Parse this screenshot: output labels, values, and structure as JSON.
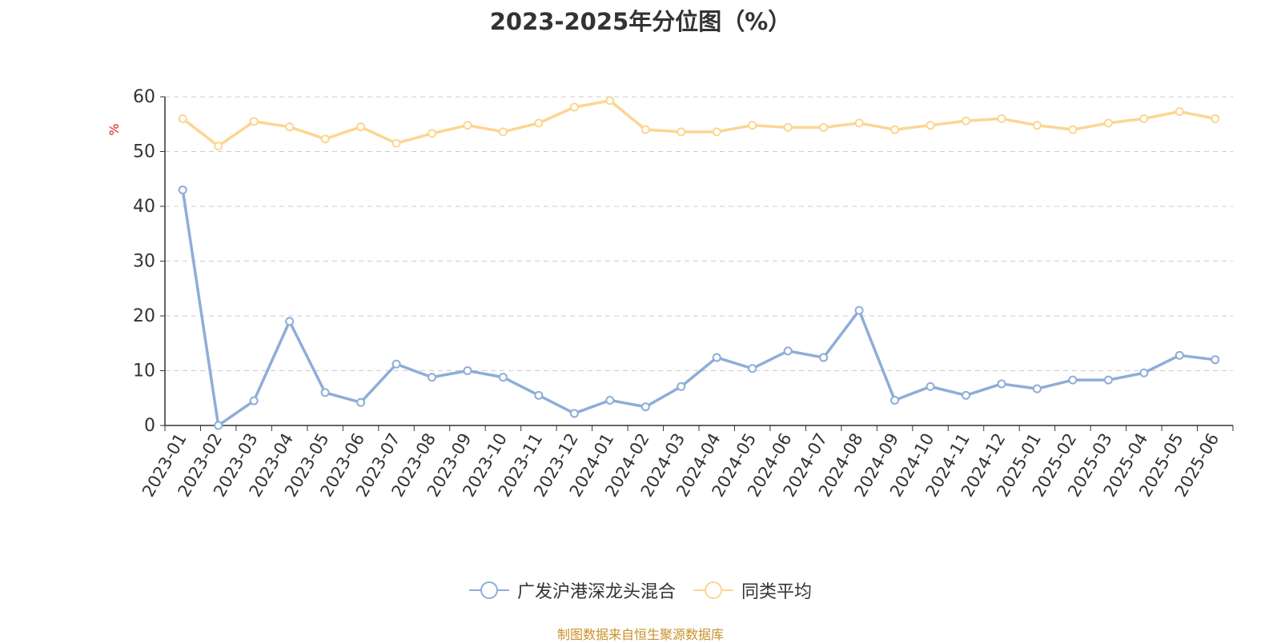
{
  "colors": {
    "series_fund": "#8eadd8",
    "series_avg": "#fcd690",
    "grid": "#cccccc",
    "axis": "#333333",
    "ylabel": "#e02020",
    "source": "#c9902a"
  },
  "source_note": "制图数据来自恒生聚源数据库",
  "chart_data": {
    "type": "line",
    "title": "2023-2025年分位图（%）",
    "xlabel": "",
    "ylabel": "%",
    "ylim": [
      0,
      60
    ],
    "yticks": [
      0,
      10,
      20,
      30,
      40,
      50,
      60
    ],
    "grid": true,
    "legend_position": "bottom",
    "categories": [
      "2023-01",
      "2023-02",
      "2023-03",
      "2023-04",
      "2023-05",
      "2023-06",
      "2023-07",
      "2023-08",
      "2023-09",
      "2023-10",
      "2023-11",
      "2023-12",
      "2024-01",
      "2024-02",
      "2024-03",
      "2024-04",
      "2024-05",
      "2024-06",
      "2024-07",
      "2024-08",
      "2024-09",
      "2024-10",
      "2024-11",
      "2024-12",
      "2025-01",
      "2025-02",
      "2025-03",
      "2025-04",
      "2025-05",
      "2025-06"
    ],
    "series": [
      {
        "name": "广发沪港深龙头混合",
        "color": "#8eadd8",
        "values": [
          43,
          0,
          4.5,
          19,
          6,
          4.2,
          11.2,
          8.8,
          10,
          8.8,
          5.5,
          2.2,
          4.6,
          3.4,
          7.1,
          12.4,
          10.4,
          13.6,
          12.4,
          21,
          4.6,
          7.1,
          5.5,
          7.6,
          6.7,
          8.3,
          8.3,
          9.6,
          12.8,
          12
        ]
      },
      {
        "name": "同类平均",
        "color": "#fcd690",
        "values": [
          56,
          51,
          55.5,
          54.5,
          52.3,
          54.5,
          51.5,
          53.3,
          54.8,
          53.6,
          55.2,
          58.1,
          59.3,
          54,
          53.6,
          53.6,
          54.8,
          54.4,
          54.4,
          55.2,
          54,
          54.8,
          55.6,
          56,
          54.8,
          54,
          55.2,
          56,
          57.3,
          56
        ]
      }
    ]
  }
}
